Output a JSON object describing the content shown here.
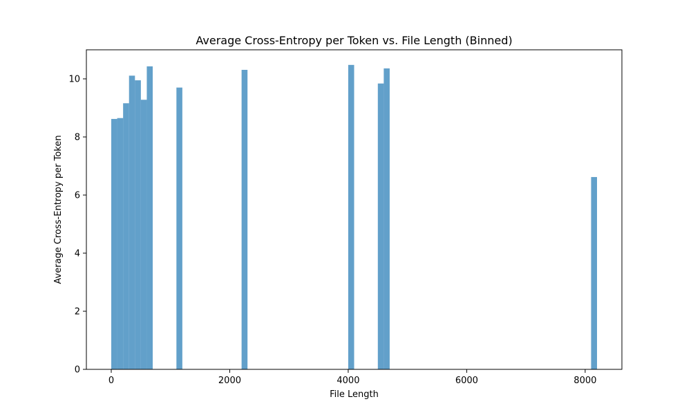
{
  "chart_data": {
    "type": "bar",
    "title": "Average Cross-Entropy per Token vs. File Length (Binned)",
    "xlabel": "File Length",
    "ylabel": "Average Cross-Entropy per Token",
    "xlim": [
      -420,
      8620
    ],
    "ylim": [
      0,
      11.0
    ],
    "bin_width": 100,
    "bars": [
      {
        "x_start": 0,
        "x_end": 100,
        "value": 8.62
      },
      {
        "x_start": 100,
        "x_end": 200,
        "value": 8.65
      },
      {
        "x_start": 200,
        "x_end": 300,
        "value": 9.16
      },
      {
        "x_start": 300,
        "x_end": 400,
        "value": 10.11
      },
      {
        "x_start": 400,
        "x_end": 500,
        "value": 9.95
      },
      {
        "x_start": 500,
        "x_end": 600,
        "value": 9.28
      },
      {
        "x_start": 600,
        "x_end": 700,
        "value": 10.43
      },
      {
        "x_start": 1100,
        "x_end": 1200,
        "value": 9.7
      },
      {
        "x_start": 2200,
        "x_end": 2300,
        "value": 10.31
      },
      {
        "x_start": 4000,
        "x_end": 4100,
        "value": 10.48
      },
      {
        "x_start": 4500,
        "x_end": 4600,
        "value": 9.84
      },
      {
        "x_start": 4600,
        "x_end": 4700,
        "value": 10.36
      },
      {
        "x_start": 8100,
        "x_end": 8200,
        "value": 6.62
      }
    ],
    "x_ticks": [
      0,
      2000,
      4000,
      6000,
      8000
    ],
    "x_tick_labels": [
      "0",
      "2000",
      "4000",
      "6000",
      "8000"
    ],
    "y_ticks": [
      0,
      2,
      4,
      6,
      8,
      10
    ],
    "y_tick_labels": [
      "0",
      "2",
      "4",
      "6",
      "8",
      "10"
    ],
    "bar_color": "#1f77b4",
    "bar_opacity": 0.7,
    "grid": false,
    "legend": "none"
  }
}
